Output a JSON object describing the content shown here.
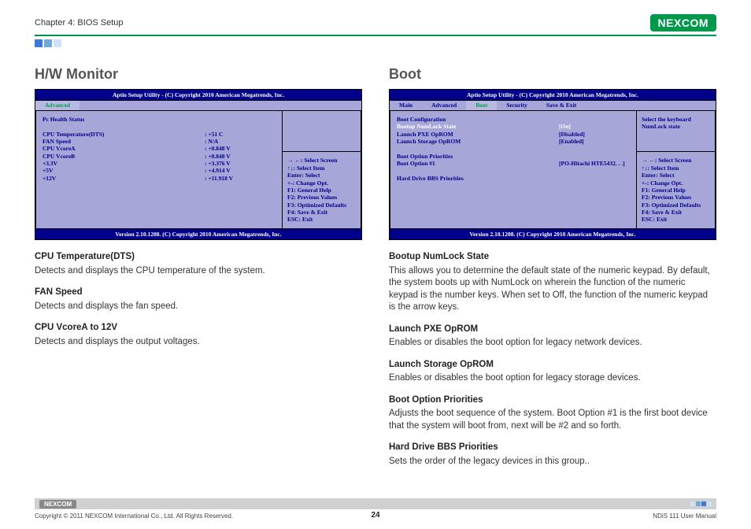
{
  "header": {
    "chapter": "Chapter 4: BIOS Setup",
    "logo": "NEXCOM"
  },
  "left": {
    "title": "H/W Monitor",
    "bios": {
      "header": "Aptio Setup Utility - (C) Copyright 2010 American Megatrends, Inc.",
      "footer": "Version 2.10.1208. (C) Copyright 2010 American Megatrends, Inc.",
      "tabs": [
        "Advanced"
      ],
      "active_tab": "Advanced",
      "section_label": "Pc Health Status",
      "rows": [
        {
          "label": "CPU Temperature(DTS)",
          "value": ": +51 C"
        },
        {
          "label": "FAN Speed",
          "value": ": N/A"
        },
        {
          "label": "CPU VcoreA",
          "value": ": +0.848 V"
        },
        {
          "label": "CPU VcoreB",
          "value": ": +0.848 V"
        },
        {
          "label": "+3.3V",
          "value": ": +3.376 V"
        },
        {
          "label": "+5V",
          "value": ": +4.914 V"
        },
        {
          "label": "+12V",
          "value": ": +11.918 V"
        }
      ],
      "help_top": "",
      "help_bot": "→ ←: Select Screen\n↑↓:    Select Item\nEnter: Select\n+-:    Change Opt.\nF1:    General Help\nF2:    Previous Values\nF3:    Optimized Defaults\nF4:    Save & Exit\nESC: Exit"
    },
    "desc": [
      {
        "h": "CPU Temperature(DTS)",
        "p": "Detects and displays the CPU temperature of the system."
      },
      {
        "h": "FAN Speed",
        "p": "Detects and displays the fan speed."
      },
      {
        "h": "CPU VcoreA to 12V",
        "p": "Detects and displays the output voltages."
      }
    ]
  },
  "right": {
    "title": "Boot",
    "bios": {
      "header": "Aptio Setup Utility - (C) Copyright 2010 American Megatrends, Inc.",
      "footer": "Version 2.10.1208. (C) Copyright 2010 American Megatrends, Inc.",
      "tabs": [
        "Main",
        "Advanced",
        "Boot",
        "Security",
        "Save & Exit"
      ],
      "active_tab": "Boot",
      "section_label": "Boot Configuration",
      "rows": [
        {
          "label": "Bootup NumLock State",
          "value": "[On]",
          "white": true
        },
        {
          "label": "Launch PXE OpROM",
          "value": "[Disabled]",
          "blue": true
        },
        {
          "label": "Launch Storage OpROM",
          "value": "[Enabled]",
          "blue": true
        }
      ],
      "section2_label": "Boot Option Priorities",
      "rows2": [
        {
          "label": "Boot Option #1",
          "value": "[PO-Hitachi HTE5432. . .]",
          "blue": true
        }
      ],
      "extra": "Hard Drive BBS Priorities",
      "help_top": "Select the keyboard NumLock state",
      "help_bot": "→ ←: Select Screen\n↑↓:    Select Item\nEnter: Select\n+-:    Change Opt.\nF1:    General Help\nF2:    Previous Values\nF3:    Optimized Defaults\nF4:    Save & Exit\nESC: Exit"
    },
    "desc": [
      {
        "h": "Bootup NumLock State",
        "p": "This allows you to determine the default state of the numeric keypad. By default, the system boots up with NumLock on wherein the function of the numeric keypad is the number keys. When set to Off, the function of the numeric keypad is the arrow keys."
      },
      {
        "h": "Launch PXE OpROM",
        "p": "Enables or disables the boot option for legacy network devices."
      },
      {
        "h": "Launch Storage OpROM",
        "p": "Enables or disables the boot option for legacy storage devices."
      },
      {
        "h": "Boot Option Priorities",
        "p": "Adjusts the boot sequence of the system. Boot Option #1 is the first boot device that the system will boot from, next will be #2 and so forth."
      },
      {
        "h": "Hard Drive BBS Priorities",
        "p": "Sets the order of the legacy devices in this group.."
      }
    ]
  },
  "footer": {
    "logo": "NEXCOM",
    "copyright": "Copyright © 2011 NEXCOM International Co., Ltd. All Rights Reserved.",
    "page": "24",
    "manual": "NDiS 111 User Manual"
  }
}
